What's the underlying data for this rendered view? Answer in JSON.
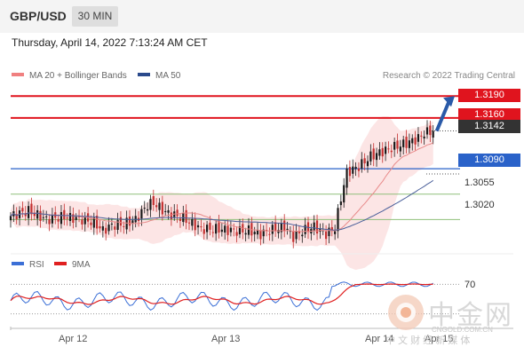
{
  "header": {
    "symbol": "GBP/USD",
    "timeframe": "30 MIN"
  },
  "timestamp": "Thursday, April 14, 2022 7:13:24 AM CET",
  "legend": {
    "bb_label": "MA 20 + Bollinger Bands",
    "ma50_label": "MA 50",
    "bb_color": "#f08080",
    "ma50_color": "#2b4a8c"
  },
  "credit": "Research © 2022 Trading Central",
  "levels": [
    {
      "value": "1.3190",
      "style": "resistance"
    },
    {
      "value": "1.3160",
      "style": "resistance"
    },
    {
      "value": "1.3142",
      "style": "last"
    },
    {
      "value": "1.3090",
      "style": "pivot"
    },
    {
      "value": "1.3055",
      "style": "support"
    },
    {
      "value": "1.3020",
      "style": "support"
    }
  ],
  "xaxis": [
    "Apr 12",
    "Apr 13",
    "Apr 14",
    "Apr 15"
  ],
  "rsi": {
    "label": "RSI",
    "ma_label": "9MA",
    "level_label": "70",
    "rsi_color": "#3b6fd6",
    "ma_color": "#e02020"
  },
  "colors": {
    "resistance": "#e0141e",
    "pivot": "#2a62c9",
    "support": "#8fbf7a",
    "last": "#333333",
    "up_candle": "#1a1a1a",
    "down_candle": "#c43030",
    "band": "#fbe0e0"
  },
  "watermark": {
    "cn": "中金网",
    "site": "CNGOLD.COM.CN",
    "sub": "中 文 财 经 新 媒 体"
  },
  "chart_data": {
    "type": "candlestick",
    "x": [
      "Apr 12",
      "Apr 13",
      "Apr 14",
      "Apr 15"
    ],
    "price_range": [
      1.2985,
      1.3205
    ],
    "close_path": [
      [
        0,
        1.3025
      ],
      [
        6,
        1.3032
      ],
      [
        12,
        1.302
      ],
      [
        18,
        1.3024
      ],
      [
        24,
        1.302
      ],
      [
        28,
        1.3016
      ],
      [
        31,
        1.3005
      ],
      [
        34,
        1.3012
      ],
      [
        38,
        1.3014
      ],
      [
        42,
        1.302
      ],
      [
        46,
        1.304
      ],
      [
        48,
        1.3043
      ],
      [
        52,
        1.303
      ],
      [
        58,
        1.3022
      ],
      [
        64,
        1.3007
      ],
      [
        70,
        1.3007
      ],
      [
        76,
        1.3004
      ],
      [
        80,
        1.3005
      ],
      [
        84,
        1.3
      ],
      [
        88,
        1.3006
      ],
      [
        92,
        1.301
      ],
      [
        95,
        1.2996
      ],
      [
        98,
        1.3004
      ],
      [
        102,
        1.301
      ],
      [
        106,
        1.3
      ],
      [
        109,
        1.3008
      ],
      [
        111,
        1.305
      ],
      [
        113,
        1.3085
      ],
      [
        117,
        1.3093
      ],
      [
        121,
        1.3107
      ],
      [
        125,
        1.3114
      ],
      [
        129,
        1.312
      ],
      [
        133,
        1.3125
      ],
      [
        137,
        1.3132
      ],
      [
        139,
        1.3139
      ],
      [
        142,
        1.3142
      ]
    ],
    "levels": {
      "resistance": [
        1.319,
        1.316
      ],
      "last": 1.3142,
      "pivot": 1.309,
      "support": [
        1.3055,
        1.302
      ]
    },
    "target_arrow": {
      "from": 1.3142,
      "to": 1.319
    },
    "rsi_range": [
      20,
      80
    ],
    "rsi_levels": [
      70
    ]
  }
}
